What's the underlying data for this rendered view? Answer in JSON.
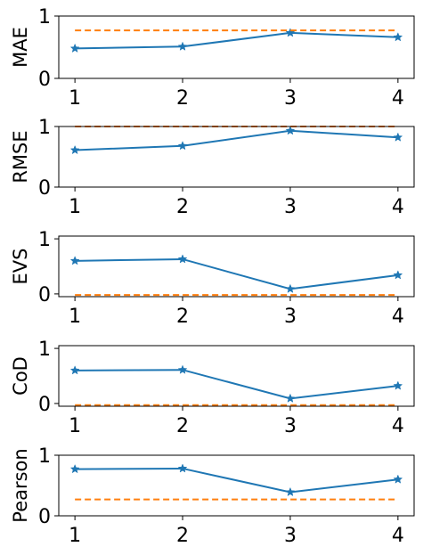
{
  "chart_data": [
    {
      "type": "line",
      "ylabel": "MAE",
      "x": [
        1,
        2,
        3,
        4
      ],
      "ylim": [
        0,
        1
      ],
      "yticks": [
        0,
        1
      ],
      "series": [
        {
          "values": [
            0.48,
            0.51,
            0.73,
            0.66
          ],
          "color": "#1f77b4",
          "style": "solid",
          "marker": "star"
        },
        {
          "values": [
            0.77,
            0.77,
            0.77,
            0.77
          ],
          "color": "#ff7f0e",
          "style": "dashed"
        }
      ]
    },
    {
      "type": "line",
      "ylabel": "RMSE",
      "x": [
        1,
        2,
        3,
        4
      ],
      "ylim": [
        0,
        1
      ],
      "yticks": [
        0,
        1
      ],
      "series": [
        {
          "values": [
            0.61,
            0.68,
            0.93,
            0.82
          ],
          "color": "#1f77b4",
          "style": "solid",
          "marker": "star"
        },
        {
          "values": [
            1.0,
            1.0,
            1.0,
            1.0
          ],
          "color": "#ff7f0e",
          "style": "dashed"
        }
      ]
    },
    {
      "type": "line",
      "ylabel": "EVS",
      "x": [
        1,
        2,
        3,
        4
      ],
      "ylim": [
        -0.05,
        1.05
      ],
      "yticks": [
        0,
        1
      ],
      "series": [
        {
          "values": [
            0.6,
            0.63,
            0.09,
            0.34
          ],
          "color": "#1f77b4",
          "style": "solid",
          "marker": "star"
        },
        {
          "values": [
            -0.02,
            -0.02,
            -0.02,
            -0.02
          ],
          "color": "#ff7f0e",
          "style": "dashed"
        }
      ]
    },
    {
      "type": "line",
      "ylabel": "CoD",
      "x": [
        1,
        2,
        3,
        4
      ],
      "ylim": [
        -0.05,
        1.05
      ],
      "yticks": [
        0,
        1
      ],
      "series": [
        {
          "values": [
            0.6,
            0.61,
            0.09,
            0.32
          ],
          "color": "#1f77b4",
          "style": "solid",
          "marker": "star"
        },
        {
          "values": [
            -0.03,
            -0.03,
            -0.03,
            -0.03
          ],
          "color": "#ff7f0e",
          "style": "dashed"
        }
      ]
    },
    {
      "type": "line",
      "ylabel": "Pearson",
      "x": [
        1,
        2,
        3,
        4
      ],
      "ylim": [
        0,
        1
      ],
      "yticks": [
        0,
        1
      ],
      "series": [
        {
          "values": [
            0.77,
            0.78,
            0.39,
            0.6
          ],
          "color": "#1f77b4",
          "style": "solid",
          "marker": "star"
        },
        {
          "values": [
            0.27,
            0.27,
            0.27,
            0.27
          ],
          "color": "#ff7f0e",
          "style": "dashed"
        }
      ]
    }
  ]
}
